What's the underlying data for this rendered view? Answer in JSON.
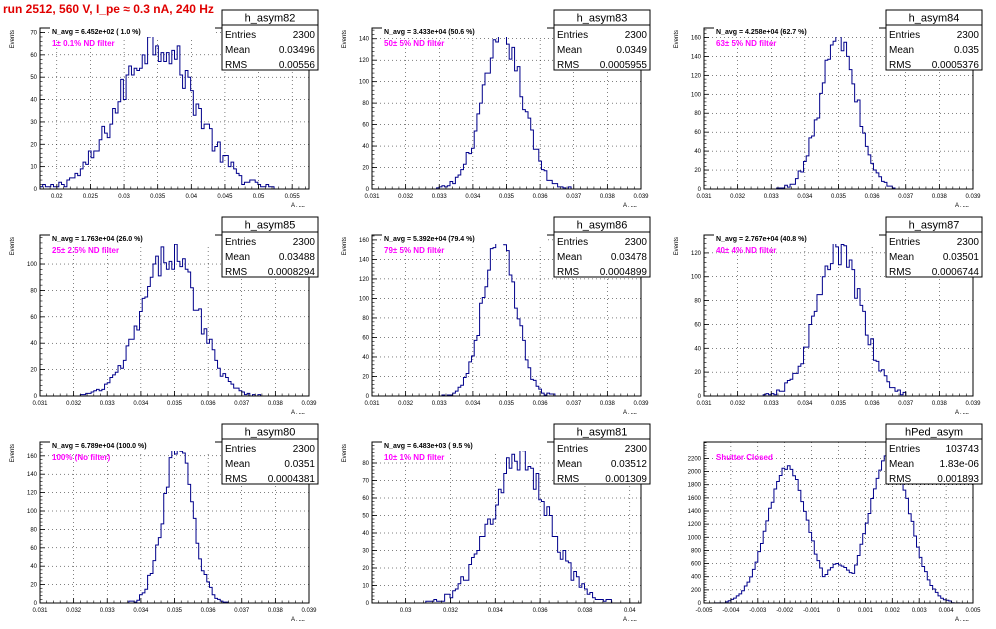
{
  "figure": {
    "title": "run 2512,   560 V, I_pe ≈ 0.3 nA, 240 Hz",
    "hist_color": "#00008b",
    "frame_color": "#000000",
    "annotation_color": "#ff00ff",
    "title_color": "#e00000",
    "grid": true
  },
  "chart_data": [
    {
      "type": "histogram",
      "name": "h_asym82",
      "stats": [
        [
          "Entries",
          "2300"
        ],
        [
          "Mean",
          "0.03496"
        ],
        [
          "RMS",
          "0.00556"
        ]
      ],
      "navg_label": "N_avg = 6.452e+02 ( 1.0 %)",
      "annotation": "1± 0.1% ND filter",
      "xlabel": "A_LED",
      "ylabel": "Events",
      "xlim": [
        0.0175,
        0.0575
      ],
      "ylim": [
        0,
        72
      ],
      "xticks": [
        0.02,
        0.025,
        0.03,
        0.035,
        0.04,
        0.045,
        0.05,
        0.055
      ],
      "xtick_labels": [
        "0.02",
        "0.025",
        "0.03",
        "0.035",
        "0.04",
        "0.045",
        "0.05",
        "0.055"
      ],
      "yticks": [
        0,
        10,
        20,
        30,
        40,
        50,
        60,
        70
      ],
      "mean": 0.03496,
      "rms": 0.00556,
      "peak": 66,
      "nbins": 100
    },
    {
      "type": "histogram",
      "name": "h_asym83",
      "stats": [
        [
          "Entries",
          "2300"
        ],
        [
          "Mean",
          "0.0349"
        ],
        [
          "RMS",
          "0.0005955"
        ]
      ],
      "navg_label": "N_avg = 3.433e+04 (50.6 %)",
      "annotation": "50± 5% ND filter",
      "xlabel": "A_LED",
      "ylabel": "Events",
      "xlim": [
        0.031,
        0.039
      ],
      "ylim": [
        0,
        150
      ],
      "xticks": [
        0.031,
        0.032,
        0.033,
        0.034,
        0.035,
        0.036,
        0.037,
        0.038,
        0.039
      ],
      "xtick_labels": [
        "0.031",
        "0.032",
        "0.033",
        "0.034",
        "0.035",
        "0.036",
        "0.037",
        "0.038",
        "0.039"
      ],
      "yticks": [
        0,
        20,
        40,
        60,
        80,
        100,
        120,
        140
      ],
      "mean": 0.0349,
      "rms": 0.0005955,
      "peak": 140,
      "nbins": 100
    },
    {
      "type": "histogram",
      "name": "h_asym84",
      "stats": [
        [
          "Entries",
          "2300"
        ],
        [
          "Mean",
          "0.035"
        ],
        [
          "RMS",
          "0.0005376"
        ]
      ],
      "navg_label": "N_avg = 4.258e+04 (62.7 %)",
      "annotation": "63± 5% ND filter",
      "xlabel": "A_LED",
      "ylabel": "Events",
      "xlim": [
        0.031,
        0.039
      ],
      "ylim": [
        0,
        170
      ],
      "xticks": [
        0.031,
        0.032,
        0.033,
        0.034,
        0.035,
        0.036,
        0.037,
        0.038,
        0.039
      ],
      "xtick_labels": [
        "0.031",
        "0.032",
        "0.033",
        "0.034",
        "0.035",
        "0.036",
        "0.037",
        "0.038",
        "0.039"
      ],
      "yticks": [
        0,
        20,
        40,
        60,
        80,
        100,
        120,
        140,
        160
      ],
      "mean": 0.035,
      "rms": 0.0005376,
      "peak": 158,
      "nbins": 100
    },
    {
      "type": "histogram",
      "name": "h_asym85",
      "stats": [
        [
          "Entries",
          "2300"
        ],
        [
          "Mean",
          "0.03488"
        ],
        [
          "RMS",
          "0.0008294"
        ]
      ],
      "navg_label": "N_avg = 1.763e+04 (26.0 %)",
      "annotation": "25± 2.5% ND filter",
      "xlabel": "A_LED",
      "ylabel": "Events",
      "xlim": [
        0.031,
        0.039
      ],
      "ylim": [
        0,
        122
      ],
      "xticks": [
        0.031,
        0.032,
        0.033,
        0.034,
        0.035,
        0.036,
        0.037,
        0.038,
        0.039
      ],
      "xtick_labels": [
        "0.031",
        "0.032",
        "0.033",
        "0.034",
        "0.035",
        "0.036",
        "0.037",
        "0.038",
        "0.039"
      ],
      "yticks": [
        0,
        20,
        40,
        60,
        80,
        100
      ],
      "mean": 0.03488,
      "rms": 0.0008294,
      "peak": 108,
      "nbins": 100
    },
    {
      "type": "histogram",
      "name": "h_asym86",
      "stats": [
        [
          "Entries",
          "2300"
        ],
        [
          "Mean",
          "0.03478"
        ],
        [
          "RMS",
          "0.0004899"
        ]
      ],
      "navg_label": "N_avg = 5.392e+04 (79.4 %)",
      "annotation": "79± 5% ND filter",
      "xlabel": "A_LED",
      "ylabel": "Events",
      "xlim": [
        0.031,
        0.039
      ],
      "ylim": [
        0,
        165
      ],
      "xticks": [
        0.031,
        0.032,
        0.033,
        0.034,
        0.035,
        0.036,
        0.037,
        0.038,
        0.039
      ],
      "xtick_labels": [
        "0.031",
        "0.032",
        "0.033",
        "0.034",
        "0.035",
        "0.036",
        "0.037",
        "0.038",
        "0.039"
      ],
      "yticks": [
        0,
        20,
        40,
        60,
        80,
        100,
        120,
        140,
        160
      ],
      "mean": 0.03478,
      "rms": 0.0004899,
      "peak": 158,
      "nbins": 100
    },
    {
      "type": "histogram",
      "name": "h_asym87",
      "stats": [
        [
          "Entries",
          "2300"
        ],
        [
          "Mean",
          "0.03501"
        ],
        [
          "RMS",
          "0.0006744"
        ]
      ],
      "navg_label": "N_avg = 2.767e+04 (40.8 %)",
      "annotation": "40± 4% ND filter",
      "xlabel": "A_LED",
      "ylabel": "Events",
      "xlim": [
        0.031,
        0.039
      ],
      "ylim": [
        0,
        135
      ],
      "xticks": [
        0.031,
        0.032,
        0.033,
        0.034,
        0.035,
        0.036,
        0.037,
        0.038,
        0.039
      ],
      "xtick_labels": [
        "0.031",
        "0.032",
        "0.033",
        "0.034",
        "0.035",
        "0.036",
        "0.037",
        "0.038",
        "0.039"
      ],
      "yticks": [
        0,
        20,
        40,
        60,
        80,
        100,
        120
      ],
      "mean": 0.03501,
      "rms": 0.0006744,
      "peak": 120,
      "nbins": 100
    },
    {
      "type": "histogram",
      "name": "h_asym80",
      "stats": [
        [
          "Entries",
          "2300"
        ],
        [
          "Mean",
          "0.0351"
        ],
        [
          "RMS",
          "0.0004381"
        ]
      ],
      "navg_label": "N_avg = 6.789e+04 (100.0 %)",
      "annotation": "100% (No filter)",
      "xlabel": "A_LED",
      "ylabel": "Events",
      "xlim": [
        0.031,
        0.039
      ],
      "ylim": [
        0,
        175
      ],
      "xticks": [
        0.031,
        0.032,
        0.033,
        0.034,
        0.035,
        0.036,
        0.037,
        0.038,
        0.039
      ],
      "xtick_labels": [
        "0.031",
        "0.032",
        "0.033",
        "0.034",
        "0.035",
        "0.036",
        "0.037",
        "0.038",
        "0.039"
      ],
      "yticks": [
        0,
        20,
        40,
        60,
        80,
        100,
        120,
        140,
        160
      ],
      "mean": 0.0351,
      "rms": 0.0004381,
      "peak": 168,
      "nbins": 100
    },
    {
      "type": "histogram",
      "name": "h_asym81",
      "stats": [
        [
          "Entries",
          "2300"
        ],
        [
          "Mean",
          "0.03512"
        ],
        [
          "RMS",
          "0.001309"
        ]
      ],
      "navg_label": "N_avg = 6.483e+03 ( 9.5 %)",
      "annotation": "10± 1% ND filter",
      "xlabel": "A_LED",
      "ylabel": "Events",
      "xlim": [
        0.0285,
        0.0405
      ],
      "ylim": [
        0,
        92
      ],
      "xticks": [
        0.03,
        0.032,
        0.034,
        0.036,
        0.038,
        0.04
      ],
      "xtick_labels": [
        "0.03",
        "0.032",
        "0.034",
        "0.036",
        "0.038",
        "0.04"
      ],
      "yticks": [
        0,
        10,
        20,
        30,
        40,
        50,
        60,
        70,
        80
      ],
      "mean": 0.03512,
      "rms": 0.001309,
      "peak": 82,
      "nbins": 100
    },
    {
      "type": "histogram",
      "name": "hPed_asym",
      "stats": [
        [
          "Entries",
          "103743"
        ],
        [
          "Mean",
          "1.83e-06"
        ],
        [
          "RMS",
          "0.001893"
        ]
      ],
      "navg_label": "",
      "annotation": "Shutter Closed",
      "xlabel": "A_LED",
      "ylabel": "",
      "xlim": [
        -0.005,
        0.005
      ],
      "ylim": [
        0,
        2450
      ],
      "xticks": [
        -0.005,
        -0.004,
        -0.003,
        -0.002,
        -0.001,
        0,
        0.001,
        0.002,
        0.003,
        0.004,
        0.005
      ],
      "xtick_labels": [
        "-0.005",
        "-0.004",
        "-0.003",
        "-0.002",
        "-0.001",
        "0",
        "0.001",
        "0.002",
        "0.003",
        "0.004",
        "0.005"
      ],
      "yticks": [
        0,
        200,
        400,
        600,
        800,
        1000,
        1200,
        1400,
        1600,
        1800,
        2000,
        2200
      ],
      "bimodal": true,
      "modes": [
        {
          "center": -0.0019,
          "height": 2050
        },
        {
          "center": 0.0019,
          "height": 2300
        }
      ],
      "dip_value": 600,
      "nbins": 100
    }
  ]
}
